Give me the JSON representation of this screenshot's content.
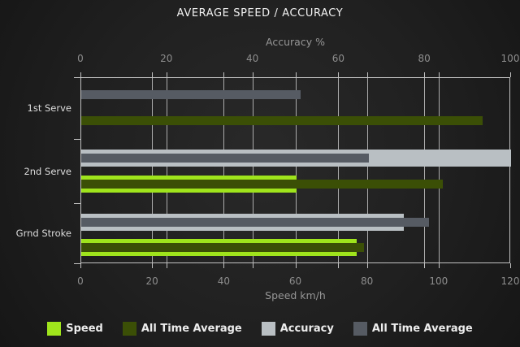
{
  "title": "AVERAGE SPEED / ACCURACY",
  "colors": {
    "background": "#202020",
    "grid": "#ababab",
    "border": "#c2c2c2",
    "title_text": "#f2f2f2",
    "axis_text": "#8d8d8d",
    "category_text": "#dcdcdc",
    "legend_text": "#ececec",
    "speed": "#9fe41c",
    "speed_all_time_average": "#3b4f06",
    "accuracy": "#b9bfc3",
    "accuracy_all_time_average": "#565b63"
  },
  "chart_data": {
    "type": "bar",
    "orientation": "horizontal",
    "title": "AVERAGE SPEED / ACCURACY",
    "categories": [
      "1st Serve",
      "2nd Serve",
      "Grnd Stroke"
    ],
    "axes": {
      "top": {
        "label": "Accuracy %",
        "min": 0,
        "max": 100,
        "ticks": [
          0,
          20,
          40,
          60,
          80,
          100
        ]
      },
      "bottom": {
        "label": "Speed km/h",
        "min": 0,
        "max": 120,
        "ticks": [
          0,
          20,
          40,
          60,
          80,
          100,
          120
        ]
      }
    },
    "series": [
      {
        "name": "Speed",
        "axis": "bottom",
        "row": "speed",
        "role": "current",
        "color": "#9fe41c",
        "values": [
          null,
          60,
          77
        ]
      },
      {
        "name": "All Time Average",
        "axis": "bottom",
        "row": "speed",
        "role": "average",
        "color": "#3b4f06",
        "values": [
          112,
          101,
          79
        ]
      },
      {
        "name": "Accuracy",
        "axis": "top",
        "row": "accuracy",
        "role": "current",
        "color": "#b9bfc3",
        "values": [
          null,
          100,
          75
        ]
      },
      {
        "name": "All Time Average",
        "axis": "top",
        "row": "accuracy",
        "role": "average",
        "color": "#565b63",
        "values": [
          51,
          67,
          81
        ]
      }
    ],
    "legend_position": "bottom",
    "grid": true
  }
}
